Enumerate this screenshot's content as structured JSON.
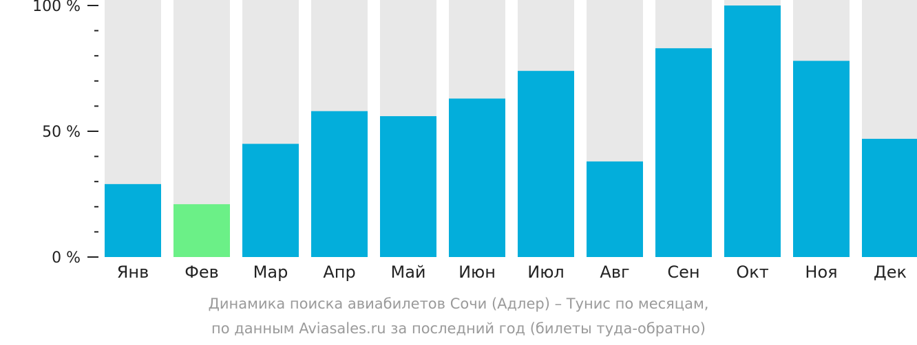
{
  "chart_data": {
    "type": "bar",
    "categories": [
      "Янв",
      "Фев",
      "Мар",
      "Апр",
      "Май",
      "Июн",
      "Июл",
      "Авг",
      "Сен",
      "Окт",
      "Ноя",
      "Дек"
    ],
    "values": [
      29,
      21,
      45,
      58,
      56,
      63,
      74,
      38,
      83,
      100,
      78,
      47
    ],
    "ylim": [
      0,
      100
    ],
    "yticks": [
      {
        "value": 0,
        "label": "0 %"
      },
      {
        "value": 50,
        "label": "50 %"
      },
      {
        "value": 100,
        "label": "100 %"
      }
    ],
    "minor_tick_step": 10,
    "highlight_index": 1,
    "colors": {
      "bar": "#03aedb",
      "highlight": "#6bf087",
      "background_bar": "#e8e8e8",
      "axis": "#222222"
    }
  },
  "caption": {
    "line1": "Динамика поиска авиабилетов Сочи (Адлер) – Тунис по месяцам,",
    "line2": "по данным Aviasales.ru за последний год (билеты туда-обратно)"
  }
}
